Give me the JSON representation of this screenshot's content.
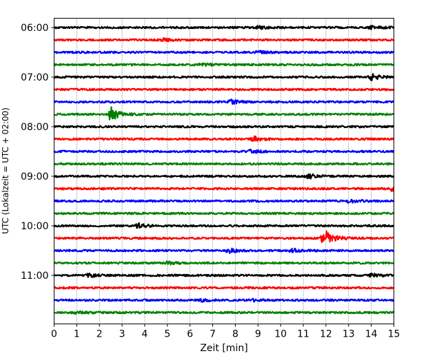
{
  "chart_data": {
    "type": "line",
    "title": "",
    "xlabel": "Zeit  [min]",
    "ylabel": "UTC (Lokalzeit = UTC + 02:00)",
    "xlim": [
      0,
      15
    ],
    "x_ticks": [
      "0",
      "1",
      "2",
      "3",
      "4",
      "5",
      "6",
      "7",
      "8",
      "9",
      "10",
      "11",
      "12",
      "13",
      "14",
      "15"
    ],
    "y_ticks": [
      "06:00",
      "07:00",
      "08:00",
      "09:00",
      "10:00",
      "11:00"
    ],
    "grid": "vertical dotted",
    "trace_interval_min": 15,
    "first_trace": "06:00",
    "trace_colors": [
      "#000000",
      "#ff0000",
      "#0000ff",
      "#008000"
    ],
    "series": [
      {
        "start": "06:00",
        "color": "#000000",
        "events": [
          {
            "t": 9.0,
            "amp": 0.12
          },
          {
            "t": 14.0,
            "amp": 0.15
          }
        ]
      },
      {
        "start": "06:15",
        "color": "#ff0000",
        "events": [
          {
            "t": 4.8,
            "amp": 0.12
          }
        ]
      },
      {
        "start": "06:30",
        "color": "#0000ff",
        "events": [
          {
            "t": 9.0,
            "amp": 0.1
          }
        ]
      },
      {
        "start": "06:45",
        "color": "#008000",
        "events": [
          {
            "t": 6.5,
            "amp": 0.12
          }
        ]
      },
      {
        "start": "07:00",
        "color": "#000000",
        "events": [
          {
            "t": 14.0,
            "amp": 0.25
          }
        ]
      },
      {
        "start": "07:15",
        "color": "#ff0000",
        "events": []
      },
      {
        "start": "07:30",
        "color": "#0000ff",
        "events": [
          {
            "t": 7.8,
            "amp": 0.15
          }
        ]
      },
      {
        "start": "07:45",
        "color": "#008000",
        "events": [
          {
            "t": 2.5,
            "amp": 0.55
          }
        ]
      },
      {
        "start": "08:00",
        "color": "#000000",
        "events": []
      },
      {
        "start": "08:15",
        "color": "#ff0000",
        "events": [
          {
            "t": 8.8,
            "amp": 0.2
          }
        ]
      },
      {
        "start": "08:30",
        "color": "#0000ff",
        "events": [
          {
            "t": 8.7,
            "amp": 0.15
          }
        ]
      },
      {
        "start": "08:45",
        "color": "#008000",
        "events": []
      },
      {
        "start": "09:00",
        "color": "#000000",
        "events": [
          {
            "t": 11.2,
            "amp": 0.22
          }
        ]
      },
      {
        "start": "09:15",
        "color": "#ff0000",
        "events": [
          {
            "t": 14.9,
            "amp": 0.15
          }
        ]
      },
      {
        "start": "09:30",
        "color": "#0000ff",
        "events": [
          {
            "t": 13.0,
            "amp": 0.12
          }
        ]
      },
      {
        "start": "09:45",
        "color": "#008000",
        "events": []
      },
      {
        "start": "10:00",
        "color": "#000000",
        "events": [
          {
            "t": 3.7,
            "amp": 0.18
          }
        ]
      },
      {
        "start": "10:15",
        "color": "#ff0000",
        "events": [
          {
            "t": 11.9,
            "amp": 0.75
          }
        ]
      },
      {
        "start": "10:30",
        "color": "#0000ff",
        "events": [
          {
            "t": 7.7,
            "amp": 0.2
          },
          {
            "t": 10.5,
            "amp": 0.15
          }
        ]
      },
      {
        "start": "10:45",
        "color": "#008000",
        "events": [
          {
            "t": 5.0,
            "amp": 0.12
          }
        ]
      },
      {
        "start": "11:00",
        "color": "#000000",
        "events": [
          {
            "t": 1.5,
            "amp": 0.12
          },
          {
            "t": 14.0,
            "amp": 0.12
          }
        ]
      },
      {
        "start": "11:15",
        "color": "#ff0000",
        "events": []
      },
      {
        "start": "11:30",
        "color": "#0000ff",
        "events": [
          {
            "t": 6.5,
            "amp": 0.1
          },
          {
            "t": 8.7,
            "amp": 0.1
          }
        ]
      },
      {
        "start": "11:45",
        "color": "#008000",
        "events": [
          {
            "t": 1.0,
            "amp": 0.1
          }
        ]
      }
    ]
  }
}
